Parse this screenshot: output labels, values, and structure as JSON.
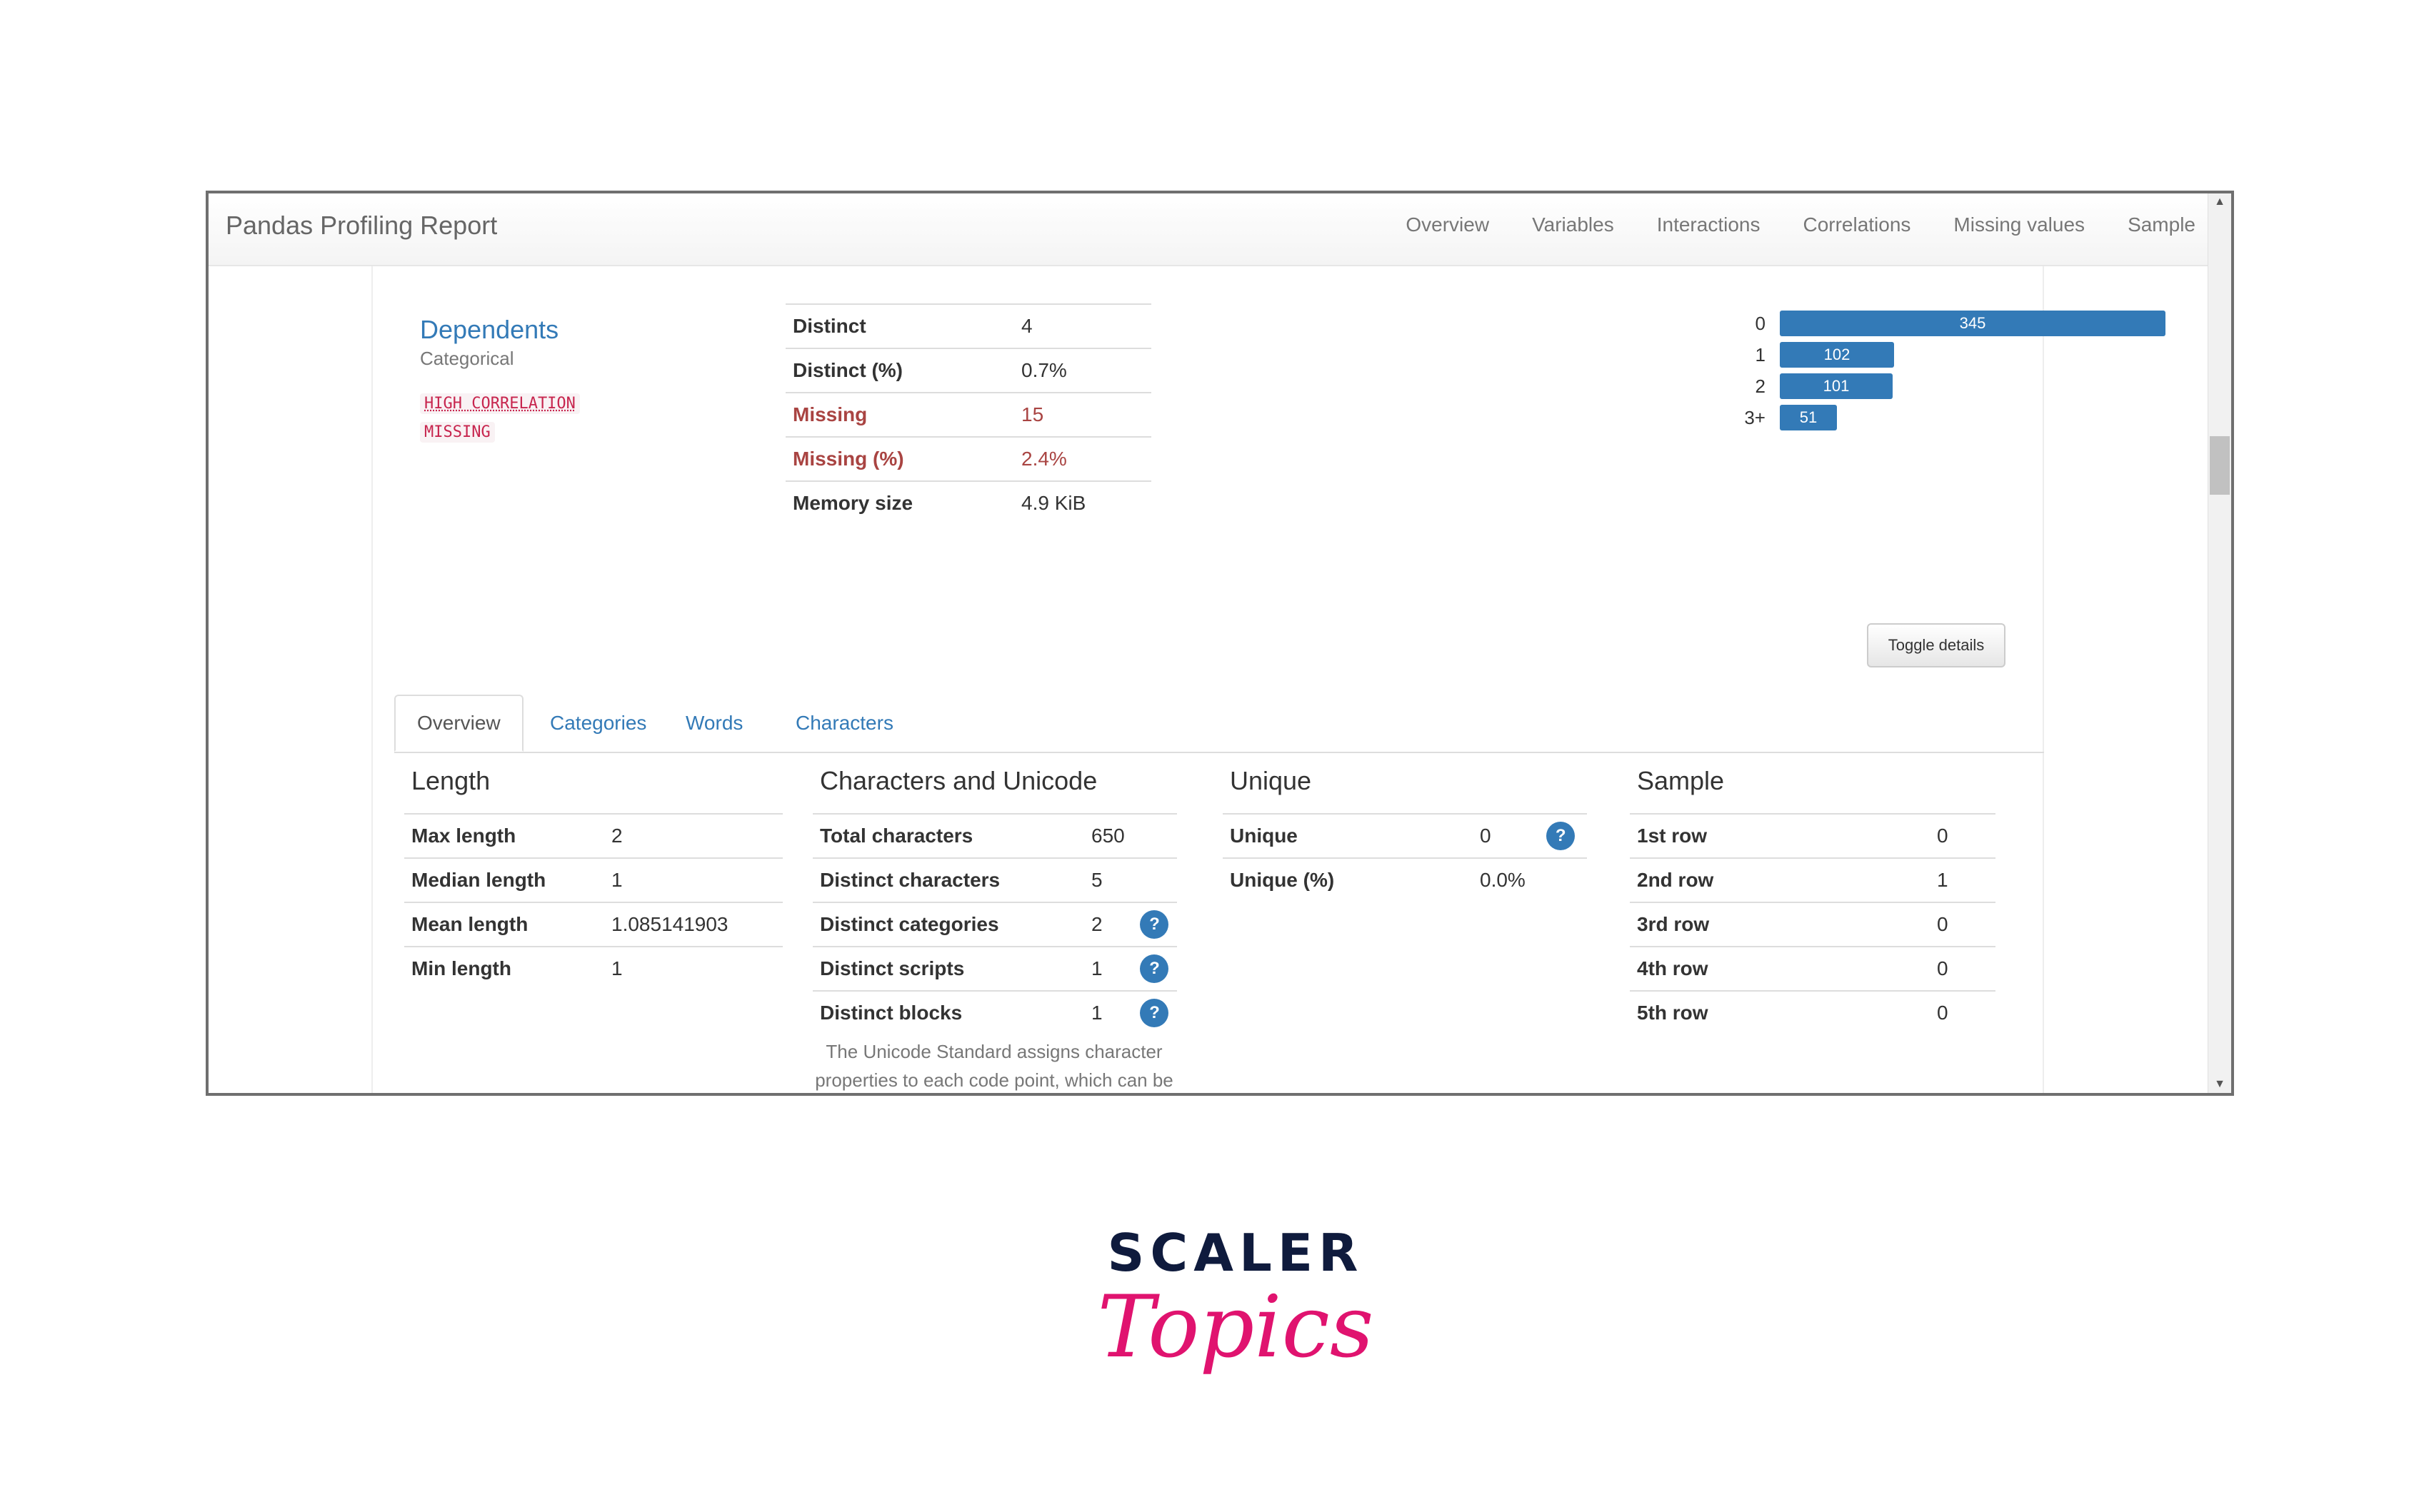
{
  "app": {
    "title": "Pandas Profiling Report",
    "nav": [
      "Overview",
      "Variables",
      "Interactions",
      "Correlations",
      "Missing values",
      "Sample"
    ]
  },
  "variable": {
    "name": "Dependents",
    "type": "Categorical",
    "badges": [
      "HIGH CORRELATION",
      "MISSING"
    ],
    "stats": [
      {
        "label": "Distinct",
        "value": "4",
        "alert": false
      },
      {
        "label": "Distinct (%)",
        "value": "0.7%",
        "alert": false
      },
      {
        "label": "Missing",
        "value": "15",
        "alert": true
      },
      {
        "label": "Missing (%)",
        "value": "2.4%",
        "alert": true
      },
      {
        "label": "Memory size",
        "value": "4.9 KiB",
        "alert": false
      }
    ],
    "frequency": {
      "categories": [
        "0",
        "1",
        "2",
        "3+"
      ],
      "values": [
        345,
        102,
        101,
        51
      ],
      "color": "#337ab7"
    },
    "toggle_label": "Toggle details"
  },
  "tabs": [
    "Overview",
    "Categories",
    "Words",
    "Characters"
  ],
  "sections": {
    "length": {
      "title": "Length",
      "rows": [
        {
          "k": "Max length",
          "v": "2"
        },
        {
          "k": "Median length",
          "v": "1"
        },
        {
          "k": "Mean length",
          "v": "1.085141903"
        },
        {
          "k": "Min length",
          "v": "1"
        }
      ]
    },
    "chars": {
      "title": "Characters and Unicode",
      "rows": [
        {
          "k": "Total characters",
          "v": "650"
        },
        {
          "k": "Distinct characters",
          "v": "5"
        },
        {
          "k": "Distinct categories",
          "v": "2"
        },
        {
          "k": "Distinct scripts",
          "v": "1"
        },
        {
          "k": "Distinct blocks",
          "v": "1"
        }
      ],
      "note": "The Unicode Standard assigns character properties to each code point, which can be used to analyse textual variables."
    },
    "unique": {
      "title": "Unique",
      "rows": [
        {
          "k": "Unique",
          "v": "0"
        },
        {
          "k": "Unique (%)",
          "v": "0.0%"
        }
      ]
    },
    "sample": {
      "title": "Sample",
      "rows": [
        {
          "k": "1st row",
          "v": "0"
        },
        {
          "k": "2nd row",
          "v": "1"
        },
        {
          "k": "3rd row",
          "v": "0"
        },
        {
          "k": "4th row",
          "v": "0"
        },
        {
          "k": "5th row",
          "v": "0"
        }
      ]
    }
  },
  "help_glyph": "?",
  "logo": {
    "line1": "SCALER",
    "line2": "Topics",
    "dark": "#0f1b3d",
    "accent": "#e0136f"
  }
}
